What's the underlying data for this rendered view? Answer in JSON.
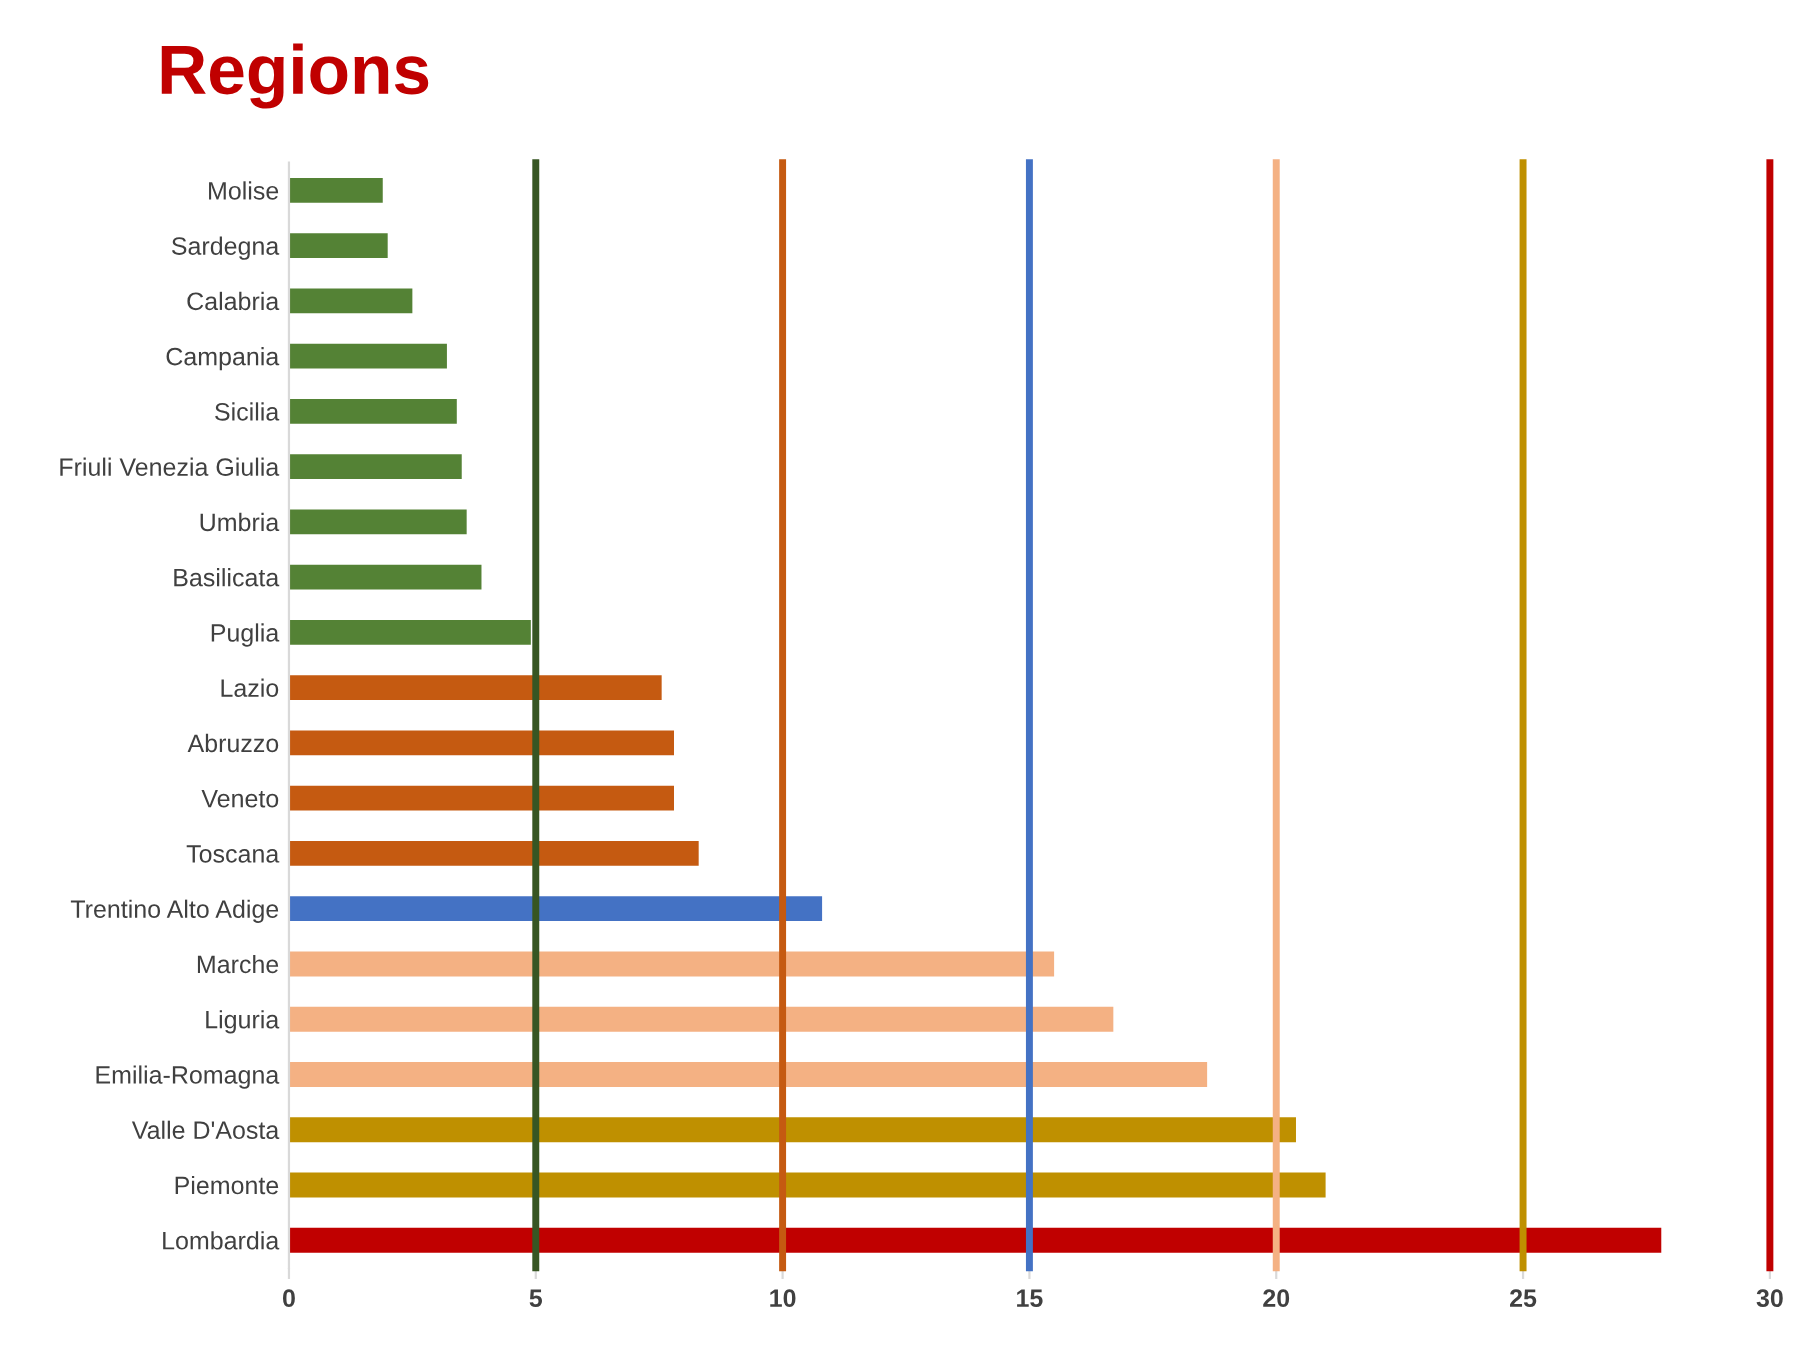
{
  "chart_data": {
    "type": "bar",
    "orientation": "horizontal",
    "title": "Regions",
    "categories": [
      "Molise",
      "Sardegna",
      "Calabria",
      "Campania",
      "Sicilia",
      "Friuli Venezia Giulia",
      "Umbria",
      "Basilicata",
      "Puglia",
      "Lazio",
      "Abruzzo",
      "Veneto",
      "Toscana",
      "Trentino Alto Adige",
      "Marche",
      "Liguria",
      "Emilia-Romagna",
      "Valle D'Aosta",
      "Piemonte",
      "Lombardia"
    ],
    "values": [
      1.9,
      2.0,
      2.5,
      3.2,
      3.4,
      3.5,
      3.6,
      3.9,
      4.9,
      7.55,
      7.8,
      7.8,
      8.3,
      10.8,
      15.5,
      16.7,
      18.6,
      20.4,
      21.0,
      27.8
    ],
    "colors": [
      "#548235",
      "#548235",
      "#548235",
      "#548235",
      "#548235",
      "#548235",
      "#548235",
      "#548235",
      "#548235",
      "#c55a11",
      "#c55a11",
      "#c55a11",
      "#c55a11",
      "#4472c4",
      "#f4b183",
      "#f4b183",
      "#f4b183",
      "#bf9000",
      "#bf9000",
      "#c00000"
    ],
    "xlim": [
      0,
      30
    ],
    "xticks": [
      0,
      5,
      10,
      15,
      20,
      25,
      30
    ],
    "grid": false,
    "legend": false,
    "ref_lines": [
      {
        "axis": "x",
        "value": 5,
        "color": "#375623"
      },
      {
        "axis": "x",
        "value": 10,
        "color": "#c55a11"
      },
      {
        "axis": "x",
        "value": 15,
        "color": "#4472c4"
      },
      {
        "axis": "x",
        "value": 20,
        "color": "#f4b183"
      },
      {
        "axis": "x",
        "value": 25,
        "color": "#bf9000"
      },
      {
        "axis": "x",
        "value": 30,
        "color": "#c00000"
      }
    ]
  }
}
